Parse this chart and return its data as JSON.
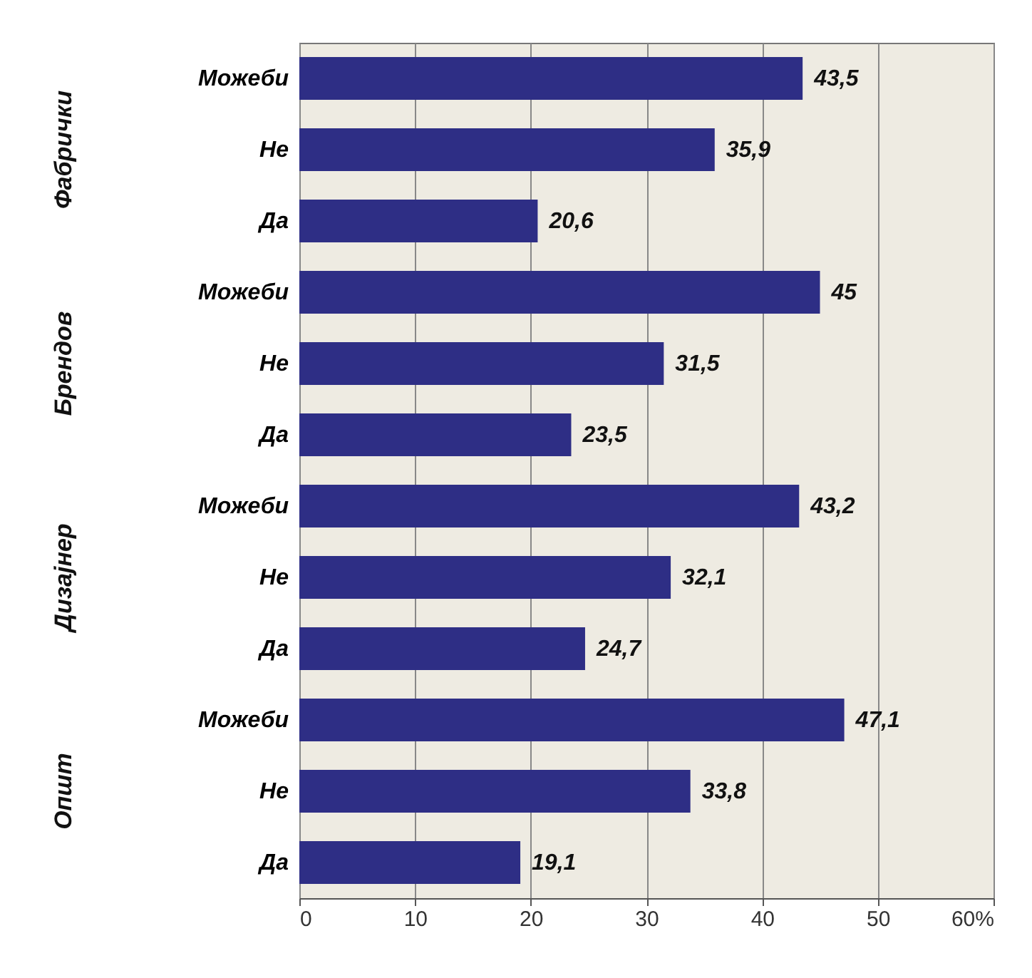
{
  "chart_data": {
    "type": "bar",
    "orientation": "horizontal",
    "categories": [
      "Можеби",
      "Не",
      "Да",
      "Можеби",
      "Не",
      "Да",
      "Можеби",
      "Не",
      "Да",
      "Можеби",
      "Не",
      "Да"
    ],
    "values": [
      43.5,
      35.9,
      20.6,
      45,
      31.5,
      23.5,
      43.2,
      32.1,
      24.7,
      47.1,
      33.8,
      19.1
    ],
    "value_labels": [
      "43,5",
      "35,9",
      "20,6",
      "45",
      "31,5",
      "23,5",
      "43,2",
      "32,1",
      "24,7",
      "47,1",
      "33,8",
      "19,1"
    ],
    "color": "#2e2e85",
    "annotations": [
      "Фабрички",
      "Брендов",
      "Дизајнер",
      "Општ"
    ],
    "xlim": [
      0,
      60
    ],
    "xticks": [
      0,
      10,
      20,
      30,
      40,
      50,
      {
        "value": 60,
        "label": "60%"
      }
    ],
    "grid": "x"
  }
}
